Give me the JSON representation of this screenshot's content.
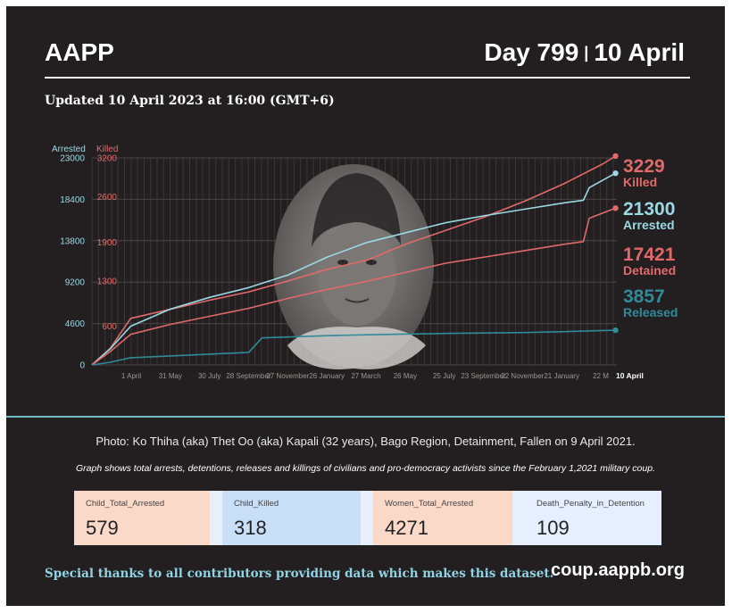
{
  "header": {
    "brand": "AAPP",
    "day_label": "Day 799",
    "separator": "|",
    "date_label": "10 April",
    "updated": "Updated 10 April 2023 at 16:00 (GMT+6)"
  },
  "chart_data": {
    "type": "line",
    "axis_titles": {
      "left_outer": "Arrested",
      "left_inner": "Killed"
    },
    "arrested_ticks": [
      "0",
      "4600",
      "9200",
      "13800",
      "18400",
      "23000"
    ],
    "killed_ticks": [
      "600",
      "1300",
      "1900",
      "2600",
      "3200"
    ],
    "ylim_arrested": [
      0,
      23000
    ],
    "ylim_killed": [
      0,
      3200
    ],
    "x_labels": [
      "1 April",
      "31 May",
      "30 July",
      "28 September",
      "27 November",
      "26 January",
      "27 March",
      "26 May",
      "25 July",
      "23 September",
      "22 November",
      "21 January",
      "22 M"
    ],
    "x_end_label": "10 April",
    "grid": true,
    "series": [
      {
        "name": "Killed",
        "axis": "killed",
        "color": "#e06a6a",
        "end_value": "3229",
        "x": [
          "2021-02-01",
          "2021-03-01",
          "2021-04-01",
          "2021-05-31",
          "2021-07-30",
          "2021-09-28",
          "2021-11-27",
          "2022-01-26",
          "2022-03-27",
          "2022-05-26",
          "2022-07-25",
          "2022-09-23",
          "2022-11-22",
          "2023-01-21",
          "2023-03-22",
          "2023-04-10"
        ],
        "values": [
          0,
          260,
          720,
          860,
          1000,
          1130,
          1300,
          1480,
          1620,
          1870,
          2080,
          2290,
          2530,
          2800,
          3110,
          3229
        ]
      },
      {
        "name": "Arrested",
        "axis": "arrested",
        "color": "#9ad9e4",
        "end_value": "21300",
        "x": [
          "2021-02-01",
          "2021-03-01",
          "2021-04-01",
          "2021-05-31",
          "2021-07-30",
          "2021-09-28",
          "2021-11-27",
          "2022-01-26",
          "2022-03-27",
          "2022-05-26",
          "2022-07-25",
          "2022-09-23",
          "2022-11-22",
          "2023-01-21",
          "2023-02-20",
          "2023-03-01",
          "2023-04-10"
        ],
        "values": [
          0,
          1800,
          4300,
          6200,
          7500,
          8600,
          10000,
          12000,
          13600,
          14700,
          15800,
          16600,
          17300,
          18000,
          18300,
          19700,
          21300
        ]
      },
      {
        "name": "Detained",
        "axis": "arrested",
        "color": "#e06a6a",
        "end_value": "17421",
        "x": [
          "2021-02-01",
          "2021-03-01",
          "2021-04-01",
          "2021-05-31",
          "2021-07-30",
          "2021-09-28",
          "2021-11-27",
          "2022-01-26",
          "2022-03-27",
          "2022-05-26",
          "2022-07-25",
          "2022-09-23",
          "2022-11-22",
          "2023-01-21",
          "2023-02-20",
          "2023-03-01",
          "2023-04-10"
        ],
        "values": [
          0,
          1500,
          3400,
          4500,
          5400,
          6300,
          7400,
          8400,
          9300,
          10300,
          11300,
          12000,
          12700,
          13400,
          13700,
          16300,
          17421
        ]
      },
      {
        "name": "Released",
        "axis": "arrested",
        "color": "#2f8a9a",
        "end_value": "3857",
        "x": [
          "2021-02-01",
          "2021-03-01",
          "2021-04-01",
          "2021-05-31",
          "2021-07-30",
          "2021-09-28",
          "2021-10-18",
          "2021-11-27",
          "2022-01-26",
          "2022-03-27",
          "2022-07-25",
          "2022-11-22",
          "2023-01-21",
          "2023-04-10"
        ],
        "values": [
          0,
          300,
          800,
          1000,
          1200,
          1400,
          3000,
          3100,
          3250,
          3350,
          3500,
          3600,
          3700,
          3857
        ]
      }
    ],
    "x_range": [
      "2021-02-01",
      "2023-04-12"
    ]
  },
  "photo": {
    "alt": "portrait"
  },
  "caption": "Photo: Ko Thiha (aka) Thet Oo (aka) Kapali (32 years), Bago Region, Detainment, Fallen on 9 April 2021.",
  "subcaption": "Graph shows total arrests, detentions, releases and killings of civilians and pro-democracy activists since the February 1,2021 military coup.",
  "cards": [
    {
      "label": "Child_Total_Arrested",
      "value": "579",
      "bg": "#fbd9c8"
    },
    {
      "label": "Child_Killed",
      "value": "318",
      "bg": "#c9dff8"
    },
    {
      "label": "Women_Total_Arrested",
      "value": "4271",
      "bg": "#fbd9c8"
    },
    {
      "label": "Death_Penalty_in_Detention",
      "value": "109",
      "bg": "#e5efff"
    }
  ],
  "footer": {
    "thanks": "Special thanks to all contributors providing data which makes this dataset.",
    "site": "coup.aappb.org"
  },
  "colors": {
    "background": "#231f20",
    "arrested": "#9ad9e4",
    "killed": "#e06a6a",
    "released": "#2f8a9a"
  }
}
